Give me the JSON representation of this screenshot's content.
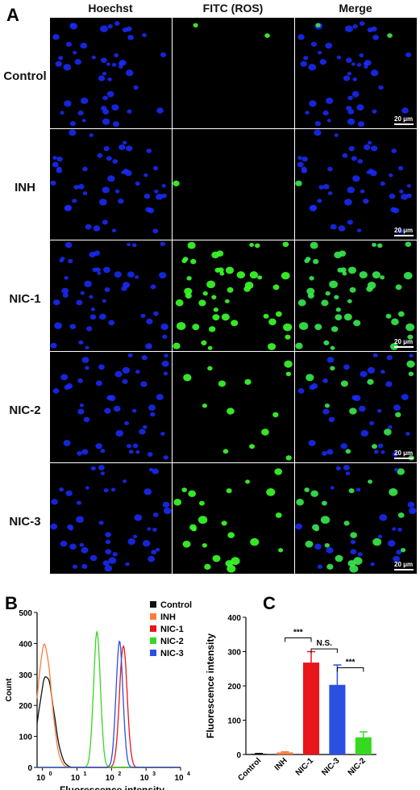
{
  "panels": {
    "a": "A",
    "b": "B",
    "c": "C"
  },
  "micrograph": {
    "columns": [
      "Hoechst",
      "FITC (ROS)",
      "Merge"
    ],
    "rows": [
      "Control",
      "INH",
      "NIC-1",
      "NIC-2",
      "NIC-3"
    ],
    "scale_bar": "20 μm",
    "green_level": [
      0.03,
      0.01,
      1.0,
      0.25,
      0.55
    ],
    "colors": {
      "nucleus": "#1a2cff",
      "ros": "#3cff2a"
    }
  },
  "chart_data": [
    {
      "type": "line",
      "panel": "B",
      "xlabel": "Fluorescence intensity",
      "ylabel": "Count",
      "xscale": "log",
      "xlim": [
        0.7,
        10000
      ],
      "ylim": [
        0,
        500
      ],
      "y_ticks": [
        0,
        100,
        200,
        300,
        400,
        500
      ],
      "x_tick_labels": [
        "10",
        "10",
        "10",
        "10",
        "10"
      ],
      "x_tick_exponents": [
        "0",
        "1",
        "2",
        "3",
        "4"
      ],
      "legend_position": "top-right",
      "series": [
        {
          "name": "Control",
          "color": "#111111",
          "peak_x": 1.3,
          "peak_y": 295,
          "width": 0.22
        },
        {
          "name": "INH",
          "color": "#ff7a3d",
          "peak_x": 1.15,
          "peak_y": 395,
          "width": 0.2
        },
        {
          "name": "NIC-1",
          "color": "#e8161b",
          "peak_x": 220,
          "peak_y": 395,
          "width": 0.11
        },
        {
          "name": "NIC-2",
          "color": "#37d820",
          "peak_x": 38,
          "peak_y": 435,
          "width": 0.1
        },
        {
          "name": "NIC-3",
          "color": "#2b4fe0",
          "peak_x": 170,
          "peak_y": 405,
          "width": 0.1
        }
      ]
    },
    {
      "type": "bar",
      "panel": "C",
      "ylabel": "Fluorescence intensity",
      "ylim": [
        0,
        400
      ],
      "y_ticks": [
        0,
        100,
        200,
        300,
        400
      ],
      "categories": [
        "Control",
        "INH",
        "NIC-1",
        "NIC-3",
        "NIC-2"
      ],
      "values": [
        2,
        6,
        268,
        203,
        50
      ],
      "errors": [
        1,
        2,
        32,
        58,
        16
      ],
      "colors": [
        "#111111",
        "#ff7a3d",
        "#e8161b",
        "#2b4fe0",
        "#37d820"
      ],
      "annotations": [
        {
          "from": 1,
          "to": 2,
          "text": "***",
          "y": 340
        },
        {
          "from": 2,
          "to": 3,
          "text": "N.S.",
          "y": 308
        },
        {
          "from": 3,
          "to": 4,
          "text": "***",
          "y": 253
        }
      ]
    }
  ]
}
